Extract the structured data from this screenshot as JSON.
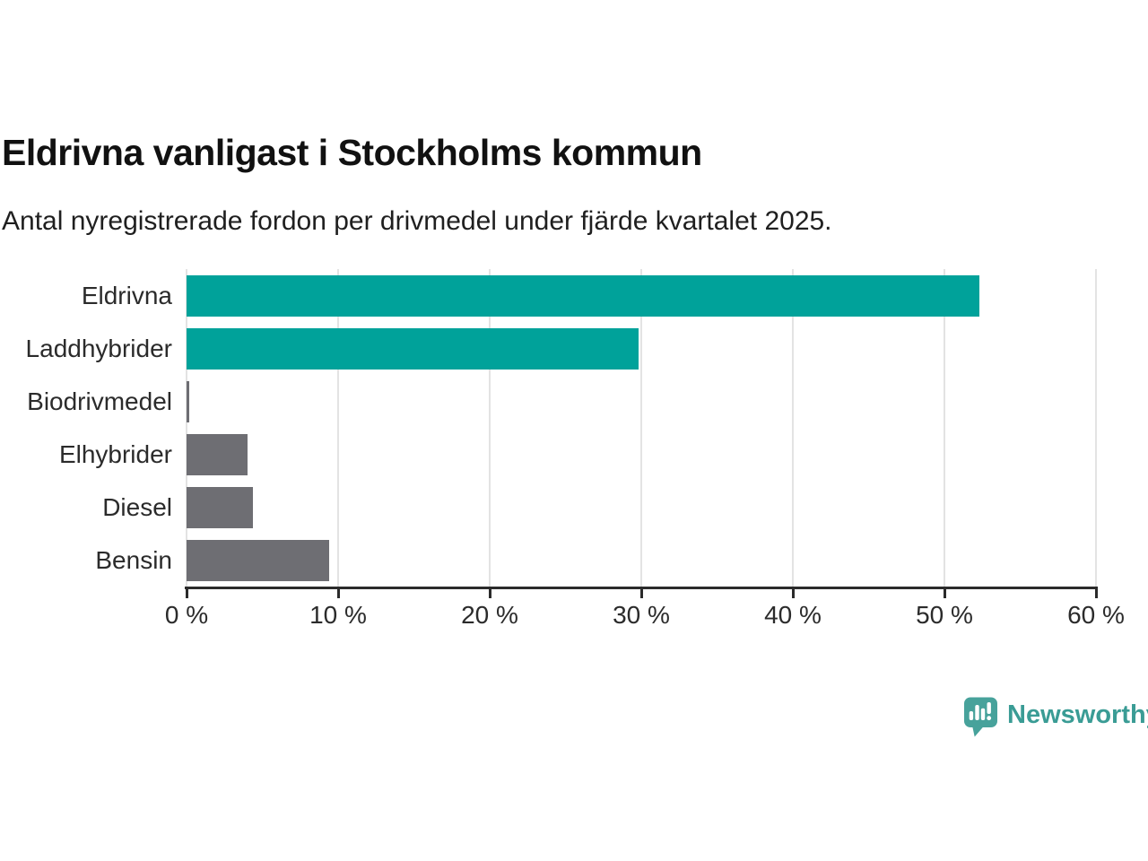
{
  "header": {
    "title": "Eldrivna vanligast i Stockholms kommun",
    "subtitle": "Antal nyregistrerade fordon per drivmedel under fjärde kvartalet 2025."
  },
  "chart_data": {
    "type": "bar",
    "orientation": "horizontal",
    "title": "Eldrivna vanligast i Stockholms kommun",
    "subtitle": "Antal nyregistrerade fordon per drivmedel under fjärde kvartalet 2025.",
    "categories": [
      "Eldrivna",
      "Laddhybrider",
      "Biodrivmedel",
      "Elhybrider",
      "Diesel",
      "Bensin"
    ],
    "values": [
      52.3,
      29.8,
      0.15,
      4.0,
      4.4,
      9.4
    ],
    "unit": "%",
    "xlim": [
      0,
      60
    ],
    "x_tick_values": [
      0,
      10,
      20,
      30,
      40,
      50,
      60
    ],
    "x_tick_labels": [
      "0 %",
      "10 %",
      "20 %",
      "30 %",
      "40 %",
      "50 %",
      "60 %"
    ],
    "bar_colors": [
      "#00a29a",
      "#00a29a",
      "#6e6e73",
      "#6e6e73",
      "#6e6e73",
      "#6e6e73"
    ],
    "grid": true,
    "legend": false
  },
  "colors": {
    "accent_teal": "#00a29a",
    "bar_gray": "#6e6e73",
    "gridline": "#e3e3e3",
    "axis": "#2b2b2b",
    "text": "#1f1f1f",
    "brand_teal": "#3a9c95",
    "logo_teal": "#47a29b"
  },
  "branding": {
    "name": "Newsworthy",
    "logo_icon": "newsworthy-bar-chart-bubble-icon"
  }
}
